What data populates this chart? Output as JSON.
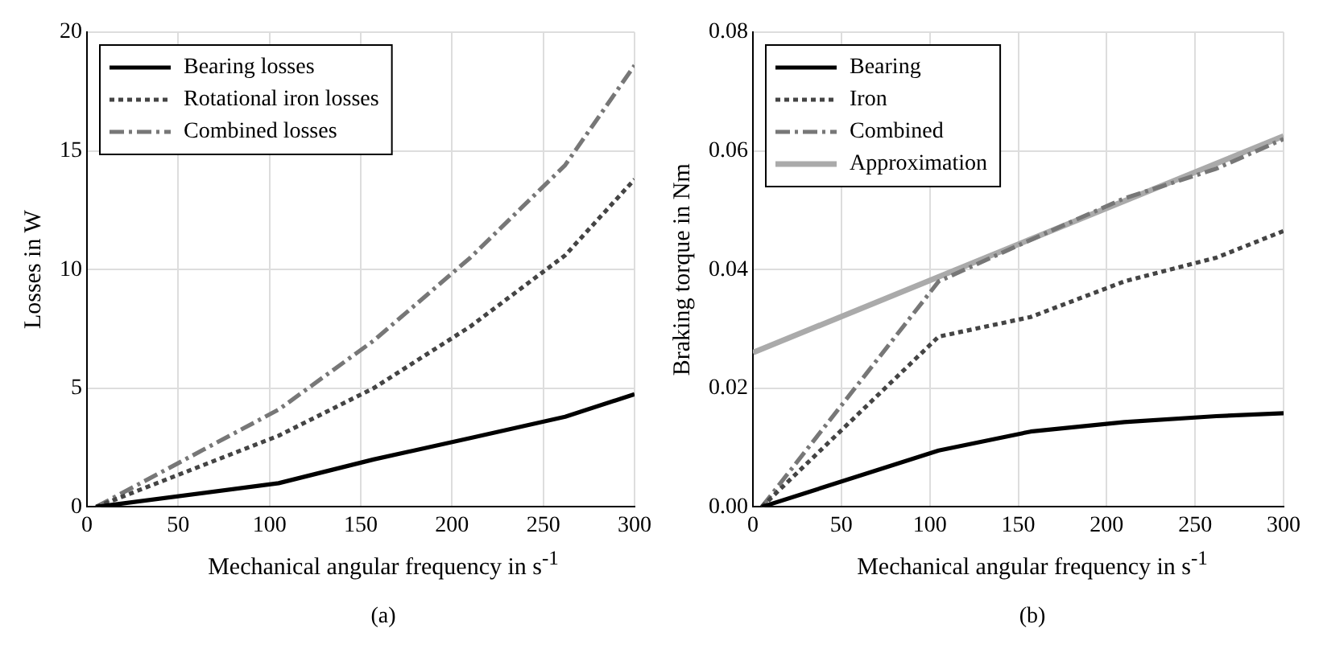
{
  "chart_data": [
    {
      "type": "line",
      "xlabel": "Mechanical angular frequency in s$^{-1}$",
      "ylabel": "Losses in W",
      "xlim": [
        0,
        300
      ],
      "xticks": [
        0,
        50,
        100,
        150,
        200,
        250,
        300
      ],
      "ylim": [
        0,
        20
      ],
      "yticks": [
        0,
        5,
        10,
        15,
        20
      ],
      "grid": true,
      "legend": "top left",
      "marker": "none",
      "annotations": [
        "(a)"
      ],
      "series": [
        {
          "name": "Bearing losses",
          "color": "#000000",
          "line_style": "solid",
          "x": [
            5,
            105,
            157,
            210,
            262,
            300
          ],
          "values": [
            0,
            1.0,
            2.0,
            2.9,
            3.8,
            4.75
          ]
        },
        {
          "name": "Rotational iron losses",
          "color": "#444444",
          "line_style": "dotted",
          "x": [
            5,
            105,
            157,
            210,
            262,
            300
          ],
          "values": [
            0,
            3.0,
            5.0,
            7.6,
            10.6,
            13.8
          ]
        },
        {
          "name": "Combined losses",
          "color": "#777777",
          "line_style": "dashed",
          "x": [
            5,
            105,
            157,
            210,
            262,
            300
          ],
          "values": [
            0,
            4.1,
            7.0,
            10.5,
            14.4,
            18.6
          ]
        }
      ]
    },
    {
      "type": "line",
      "xlabel": "Mechanical angular frequency in s$^{-1}$",
      "ylabel": "Braking torque in Nm",
      "xlim": [
        0,
        300
      ],
      "xticks": [
        0,
        50,
        100,
        150,
        200,
        250,
        300
      ],
      "ylim": [
        0,
        0.08
      ],
      "yticks": [
        {
          "value": 0,
          "label": "0.00"
        },
        0.02,
        0.04,
        0.06,
        0.08
      ],
      "grid": true,
      "legend": "top left",
      "marker": "none",
      "annotations": [
        "(b)"
      ],
      "series": [
        {
          "name": "Bearing",
          "color": "#000000",
          "line_style": "solid",
          "x": [
            5,
            105,
            157,
            210,
            262,
            300
          ],
          "values": [
            0,
            0.0095,
            0.0127,
            0.0143,
            0.0153,
            0.0158
          ]
        },
        {
          "name": "Iron",
          "color": "#444444",
          "line_style": "dotted",
          "x": [
            5,
            105,
            157,
            210,
            262,
            300
          ],
          "values": [
            0,
            0.0287,
            0.032,
            0.038,
            0.042,
            0.0465
          ]
        },
        {
          "name": "Combined",
          "color": "#777777",
          "line_style": "dashed",
          "x": [
            5,
            105,
            157,
            210,
            262,
            300
          ],
          "values": [
            0,
            0.038,
            0.045,
            0.052,
            0.057,
            0.062
          ]
        },
        {
          "name": "Approximation",
          "color": "#aaaaaa",
          "line_style": "solid",
          "x": [
            0,
            300
          ],
          "values": [
            0.026,
            0.0625
          ]
        }
      ]
    }
  ]
}
